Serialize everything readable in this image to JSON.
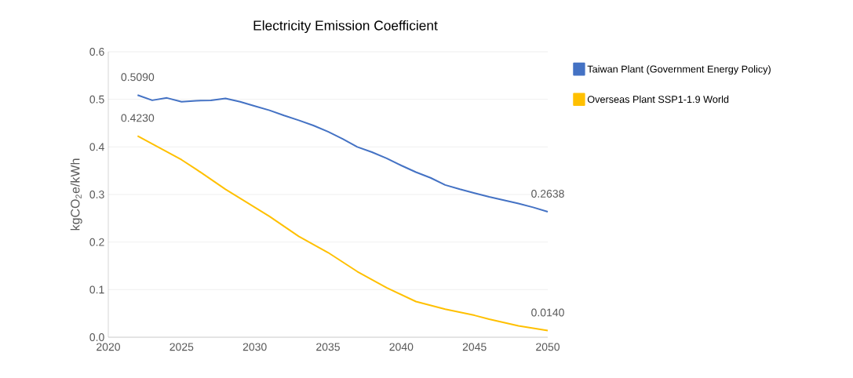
{
  "chart_data": {
    "type": "line",
    "title": "Electricity Emission Coefficient",
    "ylabel": "kgCO$_{2}$e/kWh",
    "xlim": [
      2020,
      2050
    ],
    "xticks": [
      2020,
      2025,
      2030,
      2035,
      2040,
      2045,
      2050
    ],
    "ylim": [
      0,
      0.6
    ],
    "yticks": [
      {
        "value": 0,
        "label": "0.0"
      },
      0.1,
      0.2,
      0.3,
      0.4,
      0.5,
      0.6
    ],
    "grid": "y",
    "legend": "top right",
    "line_style": "solid",
    "marker": "none",
    "series": [
      {
        "name": "Taiwan Plant (Government Energy Policy)",
        "color": "#4472c4",
        "x": [
          2022,
          2023,
          2024,
          2025,
          2026,
          2027,
          2028,
          2029,
          2030,
          2031,
          2032,
          2033,
          2034,
          2035,
          2036,
          2037,
          2038,
          2039,
          2040,
          2041,
          2042,
          2043,
          2044,
          2045,
          2046,
          2047,
          2048,
          2049,
          2050
        ],
        "values": [
          0.509,
          0.498,
          0.503,
          0.495,
          0.497,
          0.498,
          0.502,
          0.495,
          0.486,
          0.477,
          0.466,
          0.456,
          0.445,
          0.432,
          0.417,
          0.4,
          0.389,
          0.376,
          0.361,
          0.347,
          0.335,
          0.32,
          0.311,
          0.303,
          0.295,
          0.288,
          0.281,
          0.273,
          0.2638
        ],
        "value_labels": [
          "0.5090",
          null,
          null,
          null,
          null,
          null,
          null,
          null,
          null,
          null,
          null,
          null,
          null,
          null,
          null,
          null,
          null,
          null,
          null,
          null,
          null,
          null,
          null,
          null,
          null,
          null,
          null,
          null,
          "0.2638"
        ]
      },
      {
        "name": "Overseas Plant SSP1-1.9 World",
        "color": "#ffc000",
        "x": [
          2022,
          2025,
          2026,
          2028,
          2031,
          2033,
          2035,
          2037,
          2039,
          2041,
          2043,
          2045,
          2046,
          2048,
          2050
        ],
        "values": [
          0.423,
          0.373,
          0.353,
          0.311,
          0.254,
          0.212,
          0.178,
          0.138,
          0.104,
          0.075,
          0.059,
          0.046,
          0.038,
          0.024,
          0.014
        ],
        "value_labels": [
          "0.4230",
          null,
          null,
          null,
          null,
          null,
          null,
          null,
          null,
          null,
          null,
          null,
          null,
          null,
          "0.0140"
        ]
      }
    ]
  }
}
